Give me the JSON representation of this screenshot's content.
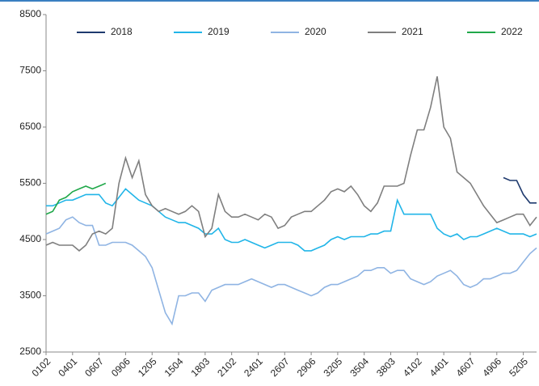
{
  "chart_data": {
    "type": "line",
    "categories": [
      "0102",
      null,
      null,
      null,
      "0401",
      null,
      null,
      null,
      "0607",
      null,
      null,
      null,
      "0906",
      null,
      null,
      null,
      "1205",
      null,
      null,
      null,
      "1504",
      null,
      null,
      null,
      "1803",
      null,
      null,
      null,
      "2102",
      null,
      null,
      null,
      "2401",
      null,
      null,
      null,
      "2607",
      null,
      null,
      null,
      "2906",
      null,
      null,
      null,
      "3205",
      null,
      null,
      null,
      "3504",
      null,
      null,
      null,
      "3803",
      null,
      null,
      null,
      "4102",
      null,
      null,
      null,
      "4401",
      null,
      null,
      null,
      "4607",
      null,
      null,
      null,
      "4906",
      null,
      null,
      null,
      "5205",
      null,
      null
    ],
    "series": [
      {
        "name": "2018",
        "color": "#1f3a6e",
        "values": [
          null,
          null,
          null,
          null,
          null,
          null,
          null,
          null,
          null,
          null,
          null,
          null,
          null,
          null,
          null,
          null,
          null,
          null,
          null,
          null,
          null,
          null,
          null,
          null,
          null,
          null,
          null,
          null,
          null,
          null,
          null,
          null,
          null,
          null,
          null,
          null,
          null,
          null,
          null,
          null,
          null,
          null,
          null,
          null,
          null,
          null,
          null,
          null,
          null,
          null,
          null,
          null,
          null,
          null,
          null,
          null,
          null,
          null,
          null,
          null,
          null,
          null,
          null,
          null,
          null,
          null,
          null,
          null,
          null,
          5600,
          5550,
          5550,
          5300,
          5150,
          5150
        ]
      },
      {
        "name": "2019",
        "color": "#21b5e8",
        "values": [
          5100,
          5100,
          5150,
          5200,
          5200,
          5250,
          5300,
          5300,
          5300,
          5150,
          5100,
          5250,
          5400,
          5300,
          5200,
          5150,
          5100,
          5000,
          4900,
          4850,
          4800,
          4800,
          4750,
          4700,
          4600,
          4600,
          4700,
          4500,
          4450,
          4450,
          4500,
          4450,
          4400,
          4350,
          4400,
          4450,
          4450,
          4450,
          4400,
          4300,
          4300,
          4350,
          4400,
          4500,
          4550,
          4500,
          4550,
          4550,
          4550,
          4600,
          4600,
          4650,
          4650,
          5200,
          4950,
          4950,
          4950,
          4950,
          4950,
          4700,
          4600,
          4550,
          4600,
          4500,
          4550,
          4550,
          4600,
          4650,
          4700,
          4650,
          4600,
          4600,
          4600,
          4550,
          4600
        ]
      },
      {
        "name": "2020",
        "color": "#8fb4e3",
        "values": [
          4600,
          4650,
          4700,
          4850,
          4900,
          4800,
          4750,
          4750,
          4400,
          4400,
          4450,
          4450,
          4450,
          4400,
          4300,
          4200,
          4000,
          3600,
          3200,
          3000,
          3500,
          3500,
          3550,
          3550,
          3400,
          3600,
          3650,
          3700,
          3700,
          3700,
          3750,
          3800,
          3750,
          3700,
          3650,
          3700,
          3700,
          3650,
          3600,
          3550,
          3500,
          3550,
          3650,
          3700,
          3700,
          3750,
          3800,
          3850,
          3950,
          3950,
          4000,
          4000,
          3900,
          3950,
          3950,
          3800,
          3750,
          3700,
          3750,
          3850,
          3900,
          3950,
          3850,
          3700,
          3650,
          3700,
          3800,
          3800,
          3850,
          3900,
          3900,
          3950,
          4100,
          4250,
          4350
        ]
      },
      {
        "name": "2021",
        "color": "#7f7f7f",
        "values": [
          4400,
          4450,
          4400,
          4400,
          4400,
          4300,
          4400,
          4600,
          4650,
          4600,
          4700,
          5500,
          5950,
          5600,
          5900,
          5300,
          5100,
          5000,
          5050,
          5000,
          4950,
          5000,
          5100,
          5000,
          4550,
          4700,
          5300,
          5000,
          4900,
          4900,
          4950,
          4900,
          4850,
          4950,
          4900,
          4700,
          4750,
          4900,
          4950,
          5000,
          5000,
          5100,
          5200,
          5350,
          5400,
          5350,
          5450,
          5300,
          5100,
          5000,
          5150,
          5450,
          5450,
          5450,
          5500,
          6000,
          6450,
          6450,
          6850,
          7400,
          6500,
          6300,
          5700,
          5600,
          5500,
          5300,
          5100,
          4950,
          4800,
          4850,
          4900,
          4950,
          4950,
          4750,
          4900
        ]
      },
      {
        "name": "2022",
        "color": "#20a84a",
        "values": [
          4950,
          5000,
          5200,
          5250,
          5350,
          5400,
          5450,
          5400,
          5450,
          5500,
          null,
          null,
          null,
          null,
          null,
          null,
          null,
          null,
          null,
          null,
          null,
          null,
          null,
          null,
          null,
          null,
          null,
          null,
          null,
          null,
          null,
          null,
          null,
          null,
          null,
          null,
          null,
          null,
          null,
          null,
          null,
          null,
          null,
          null,
          null,
          null,
          null,
          null,
          null,
          null,
          null,
          null,
          null,
          null,
          null,
          null,
          null,
          null,
          null,
          null,
          null,
          null,
          null,
          null,
          null,
          null,
          null,
          null,
          null,
          null,
          null,
          null,
          null,
          null,
          null
        ]
      }
    ],
    "ylim": [
      2500,
      8500
    ],
    "yticks": [
      2500,
      3500,
      4500,
      5500,
      6500,
      7500,
      8500
    ]
  }
}
